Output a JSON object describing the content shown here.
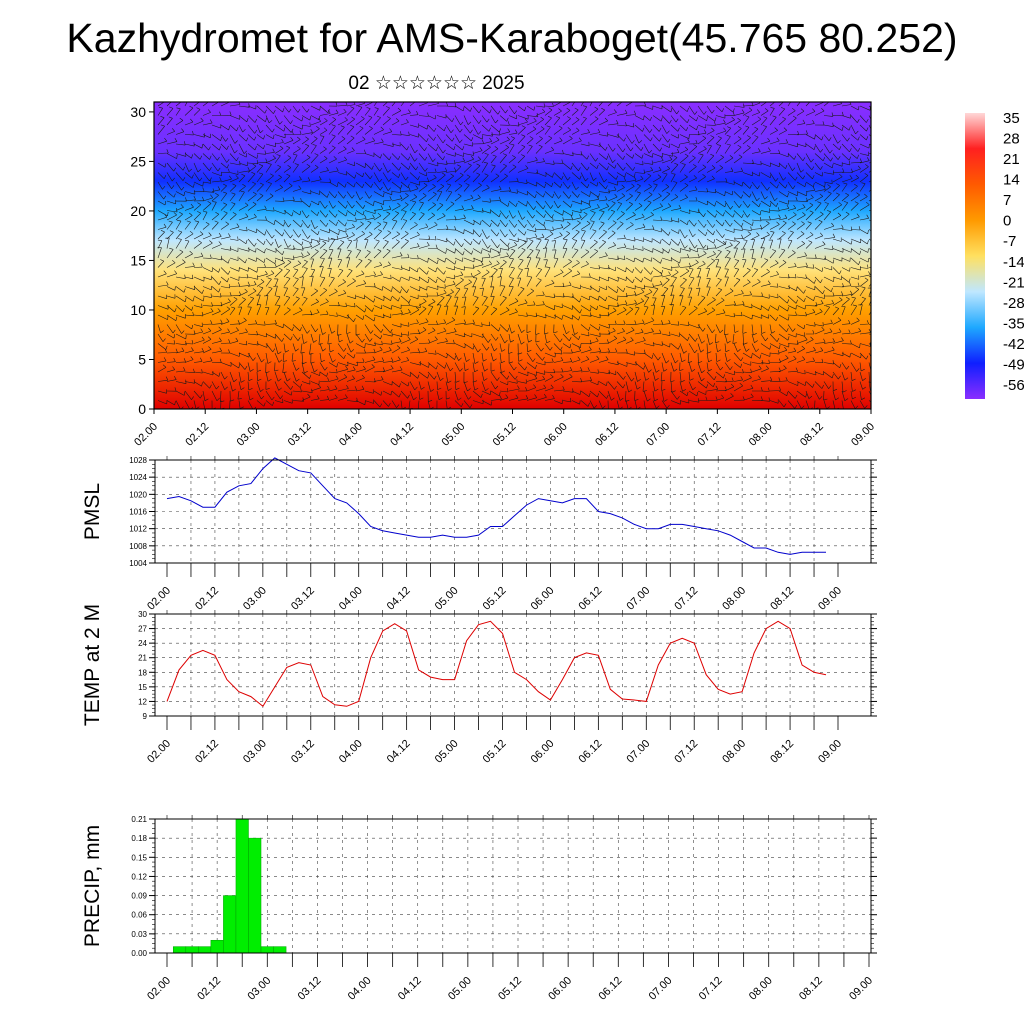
{
  "page": {
    "title": "Kazhydromet for AMS-Karaboget(45.765 80.252)",
    "subtitle": "02 ☆☆☆☆☆☆ 2025"
  },
  "chart_data": [
    {
      "type": "heatmap",
      "name": "vertical-cross-section",
      "xlabel": "",
      "ylabel": "",
      "x_ticks": [
        "02.00",
        "02.12",
        "03.00",
        "03.12",
        "04.00",
        "04.12",
        "05.00",
        "05.12",
        "06.00",
        "06.12",
        "07.00",
        "07.12",
        "08.00",
        "08.12",
        "09.00"
      ],
      "y_ticks": [
        0,
        5,
        10,
        15,
        20,
        25,
        30
      ],
      "ylim": [
        0,
        31
      ],
      "colorbar": {
        "labels": [
          "35",
          "28",
          "21",
          "14",
          "7",
          "0",
          "-7",
          "-14",
          "-21",
          "-28",
          "-35",
          "-42",
          "-49",
          "-56"
        ],
        "colors": [
          "#ffd8d8",
          "#ff2020",
          "#ff5a00",
          "#ff9a00",
          "#ffe060",
          "#bfe7ff",
          "#1ea8ff",
          "#0f1fff",
          "#8a2eff"
        ]
      },
      "bands": [
        {
          "level": 0,
          "color": "#e00000"
        },
        {
          "level": 5,
          "color": "#ff5a00"
        },
        {
          "level": 10,
          "color": "#ffa000"
        },
        {
          "level": 14,
          "color": "#ffe27a"
        },
        {
          "level": 17,
          "color": "#bfe7ff"
        },
        {
          "level": 20,
          "color": "#1ea8ff"
        },
        {
          "level": 23,
          "color": "#1030ff"
        },
        {
          "level": 26,
          "color": "#6a30ff"
        },
        {
          "level": 31,
          "color": "#8a2eff"
        }
      ],
      "colors": {
        "wind_barb": "#1a1a1a"
      }
    },
    {
      "type": "line",
      "name": "pmsl",
      "ylabel": "PMSL",
      "x_ticks": [
        "02.00",
        "02.12",
        "03.00",
        "03.12",
        "04.00",
        "04.12",
        "05.00",
        "05.12",
        "06.00",
        "06.12",
        "07.00",
        "07.12",
        "08.00",
        "08.12",
        "09.00"
      ],
      "y_ticks": [
        "1004",
        "1008",
        "1012",
        "1016",
        "1020",
        "1024",
        "1028"
      ],
      "ylim": [
        1004,
        1028
      ],
      "grid": true,
      "color": "#0000cc",
      "x_hours": [
        0,
        3,
        6,
        9,
        12,
        15,
        18,
        21,
        24,
        27,
        30,
        33,
        36,
        39,
        42,
        45,
        48,
        51,
        54,
        57,
        60,
        63,
        66,
        69,
        72,
        75,
        78,
        81,
        84,
        87,
        90,
        93,
        96,
        99,
        102,
        105,
        108,
        111,
        114,
        117,
        120,
        123,
        126,
        129,
        132,
        135,
        138,
        141,
        144,
        147,
        150,
        153,
        156,
        159,
        162,
        165
      ],
      "values": [
        1019,
        1019.5,
        1018.5,
        1017,
        1017,
        1020.5,
        1022,
        1022.5,
        1026,
        1028.5,
        1027,
        1025.5,
        1025,
        1022,
        1019,
        1018,
        1015.5,
        1012.5,
        1011.5,
        1011,
        1010.5,
        1010,
        1010,
        1010.5,
        1010,
        1010,
        1010.5,
        1012.5,
        1012.5,
        1015,
        1017.5,
        1019,
        1018.5,
        1018,
        1019,
        1019,
        1016,
        1015.5,
        1014.5,
        1013,
        1012,
        1012,
        1013,
        1013,
        1012.5,
        1012,
        1011.5,
        1010.5,
        1009,
        1007.5,
        1007.5,
        1006.5,
        1006,
        1006.5,
        1006.5,
        1006.5
      ]
    },
    {
      "type": "line",
      "name": "temp-2m",
      "ylabel": "TEMP at 2 M",
      "x_ticks": [
        "02.00",
        "02.12",
        "03.00",
        "03.12",
        "04.00",
        "04.12",
        "05.00",
        "05.12",
        "06.00",
        "06.12",
        "07.00",
        "07.12",
        "08.00",
        "08.12",
        "09.00"
      ],
      "y_ticks": [
        "9",
        "12",
        "15",
        "18",
        "21",
        "24",
        "27",
        "30"
      ],
      "ylim": [
        9,
        30
      ],
      "grid": true,
      "color": "#dd0000",
      "x_hours": [
        0,
        3,
        6,
        9,
        12,
        15,
        18,
        21,
        24,
        27,
        30,
        33,
        36,
        39,
        42,
        45,
        48,
        51,
        54,
        57,
        60,
        63,
        66,
        69,
        72,
        75,
        78,
        81,
        84,
        87,
        90,
        93,
        96,
        99,
        102,
        105,
        108,
        111,
        114,
        117,
        120,
        123,
        126,
        129,
        132,
        135,
        138,
        141,
        144,
        147,
        150,
        153,
        156,
        159,
        162,
        165
      ],
      "values": [
        12,
        18.5,
        21.5,
        22.5,
        21.5,
        16.5,
        14,
        13,
        11,
        15,
        19,
        20,
        19.5,
        13,
        11.3,
        11,
        12,
        21,
        26.5,
        28,
        26.5,
        18.5,
        17,
        16.5,
        16.5,
        24.5,
        27.8,
        28.5,
        26,
        18,
        16.5,
        14,
        12.3,
        16.5,
        21,
        22,
        21.5,
        14.5,
        12.5,
        12.3,
        12,
        19.5,
        24,
        25,
        24,
        17.5,
        14.5,
        13.5,
        14,
        22,
        27,
        28.5,
        27,
        19.5,
        18,
        17.5
      ]
    },
    {
      "type": "bar",
      "name": "precip",
      "ylabel": "PRECIP, mm",
      "x_ticks": [
        "02.00",
        "02.12",
        "03.00",
        "03.12",
        "04.00",
        "04.12",
        "05.00",
        "05.12",
        "06.00",
        "06.12",
        "07.00",
        "07.12",
        "08.00",
        "08.12",
        "09.00"
      ],
      "y_ticks": [
        "0.00",
        "0.03",
        "0.06",
        "0.09",
        "0.12",
        "0.15",
        "0.18",
        "0.21"
      ],
      "ylim": [
        0,
        0.21
      ],
      "grid": true,
      "color": "#00ee00",
      "x_hours": [
        3,
        6,
        9,
        12,
        15,
        18,
        21,
        24,
        27
      ],
      "values": [
        0.01,
        0.01,
        0.01,
        0.02,
        0.09,
        0.21,
        0.18,
        0.01,
        0.01
      ]
    }
  ]
}
